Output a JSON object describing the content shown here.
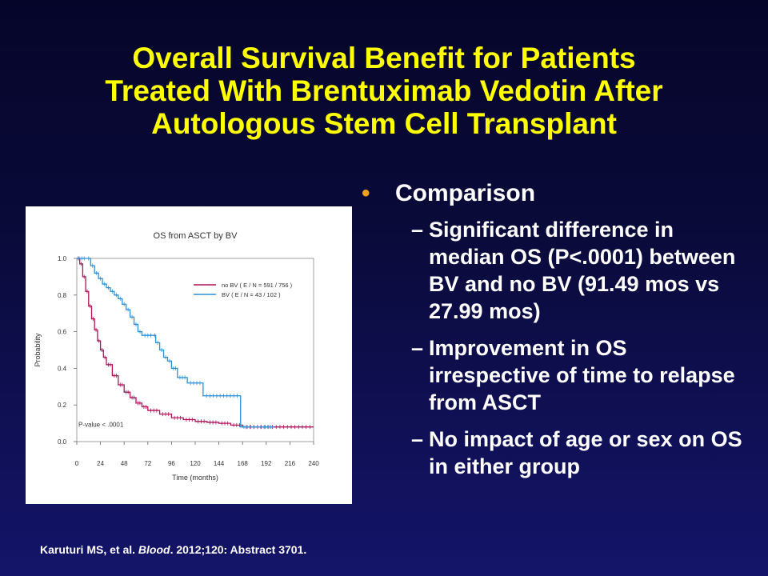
{
  "title": {
    "line1": "Overall Survival Benefit for Patients",
    "line2": "Treated With Brentuximab Vedotin After",
    "line3": "Autologous Stem Cell Transplant"
  },
  "bullets": {
    "heading": "Comparison",
    "items": [
      "Significant difference in median OS (P<.0001) between BV and no BV (91.49 mos vs 27.99 mos)",
      "Improvement in OS irrespective of time to relapse from ASCT",
      "No impact of age or sex on OS in either group"
    ],
    "dash": "–",
    "dot": "•"
  },
  "citation": {
    "authors": "Karuturi MS, et al.",
    "journal": "Blood",
    "rest": ". 2012;120: Abstract 3701."
  },
  "chart_data": {
    "type": "line",
    "title": "OS from ASCT by BV",
    "xlabel": "Time (months)",
    "ylabel": "Probability",
    "xlim": [
      0,
      240
    ],
    "ylim": [
      0,
      1.0
    ],
    "xticks": [
      "0",
      "24",
      "48",
      "72",
      "96",
      "120",
      "144",
      "168",
      "192",
      "216",
      "240"
    ],
    "yticks": [
      "0.0",
      "0.2",
      "0.4",
      "0.6",
      "0.8",
      "1.0"
    ],
    "annotation": "P-value < .0001",
    "legend_position": "top-right",
    "series": [
      {
        "name": "no BV  ( E / N = 591 / 756 )",
        "color": "#b0125a",
        "step": true,
        "points": [
          [
            0,
            1.0
          ],
          [
            3,
            0.97
          ],
          [
            6,
            0.9
          ],
          [
            9,
            0.82
          ],
          [
            12,
            0.74
          ],
          [
            15,
            0.67
          ],
          [
            18,
            0.61
          ],
          [
            21,
            0.55
          ],
          [
            24,
            0.5
          ],
          [
            27,
            0.46
          ],
          [
            30,
            0.42
          ],
          [
            36,
            0.36
          ],
          [
            42,
            0.31
          ],
          [
            48,
            0.27
          ],
          [
            54,
            0.24
          ],
          [
            60,
            0.21
          ],
          [
            66,
            0.19
          ],
          [
            72,
            0.17
          ],
          [
            84,
            0.15
          ],
          [
            96,
            0.13
          ],
          [
            108,
            0.12
          ],
          [
            120,
            0.11
          ],
          [
            132,
            0.105
          ],
          [
            144,
            0.1
          ],
          [
            156,
            0.09
          ],
          [
            168,
            0.08
          ],
          [
            240,
            0.08
          ]
        ]
      },
      {
        "name": "BV  ( E / N = 43 / 102 )",
        "color": "#2a8fd8",
        "step": true,
        "points": [
          [
            0,
            1.0
          ],
          [
            10,
            1.0
          ],
          [
            14,
            0.96
          ],
          [
            18,
            0.92
          ],
          [
            22,
            0.89
          ],
          [
            26,
            0.86
          ],
          [
            30,
            0.84
          ],
          [
            34,
            0.82
          ],
          [
            38,
            0.8
          ],
          [
            42,
            0.78
          ],
          [
            46,
            0.75
          ],
          [
            50,
            0.72
          ],
          [
            54,
            0.68
          ],
          [
            58,
            0.64
          ],
          [
            62,
            0.6
          ],
          [
            66,
            0.58
          ],
          [
            78,
            0.58
          ],
          [
            80,
            0.54
          ],
          [
            84,
            0.5
          ],
          [
            88,
            0.46
          ],
          [
            92,
            0.44
          ],
          [
            96,
            0.4
          ],
          [
            102,
            0.35
          ],
          [
            112,
            0.32
          ],
          [
            128,
            0.25
          ],
          [
            166,
            0.08
          ],
          [
            200,
            0.08
          ]
        ]
      }
    ]
  }
}
